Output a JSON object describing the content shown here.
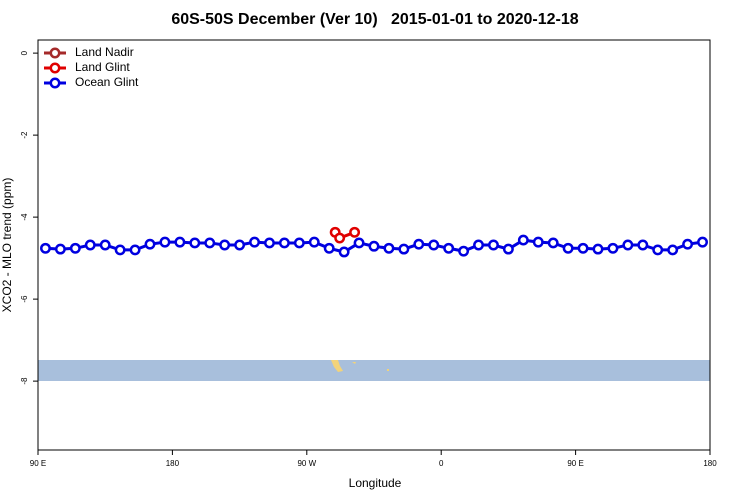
{
  "chart_data": {
    "type": "line",
    "title": "60S-50S December (Ver 10)   2015-01-01 to 2020-12-18",
    "x_label": "Longitude",
    "y_label": "XCO2 - MLO trend (ppm)",
    "xlim": [
      90,
      540
    ],
    "ylim": [
      -9.68,
      0.32
    ],
    "xticks": [
      {
        "value": 90,
        "label": "90 E"
      },
      {
        "value": 180,
        "label": "180"
      },
      {
        "value": 270,
        "label": "90 W"
      },
      {
        "value": 360,
        "label": "0"
      },
      {
        "value": 450,
        "label": "90 E"
      },
      {
        "value": 540,
        "label": "180"
      }
    ],
    "yticks": [
      0,
      -2,
      -4,
      -6,
      -8
    ],
    "legend": "top-left",
    "series": [
      {
        "name": "Land Nadir",
        "color": "#a52a2a",
        "x": [],
        "values": []
      },
      {
        "name": "Land Glint",
        "color": "#e00000",
        "x": [
          289,
          292,
          302
        ],
        "values": [
          -4.37,
          -4.51,
          -4.37
        ]
      },
      {
        "name": "Ocean Glint",
        "color": "#0000e0",
        "x": [
          95,
          105,
          115,
          125,
          135,
          145,
          155,
          165,
          175,
          185,
          195,
          205,
          215,
          225,
          235,
          245,
          255,
          265,
          275,
          285,
          295,
          305,
          315,
          325,
          335,
          345,
          355,
          365,
          375,
          385,
          395,
          405,
          415,
          425,
          435,
          445,
          455,
          465,
          475,
          485,
          495,
          505,
          515,
          525,
          535
        ],
        "values": [
          -4.76,
          -4.78,
          -4.76,
          -4.68,
          -4.68,
          -4.8,
          -4.8,
          -4.66,
          -4.61,
          -4.61,
          -4.63,
          -4.63,
          -4.68,
          -4.68,
          -4.61,
          -4.63,
          -4.63,
          -4.63,
          -4.61,
          -4.76,
          -4.85,
          -4.63,
          -4.71,
          -4.76,
          -4.78,
          -4.66,
          -4.68,
          -4.76,
          -4.83,
          -4.68,
          -4.68,
          -4.78,
          -4.56,
          -4.61,
          -4.63,
          -4.76,
          -4.76,
          -4.78,
          -4.76,
          -4.68,
          -4.68,
          -4.8,
          -4.8,
          -4.66,
          -4.61
        ]
      }
    ]
  }
}
